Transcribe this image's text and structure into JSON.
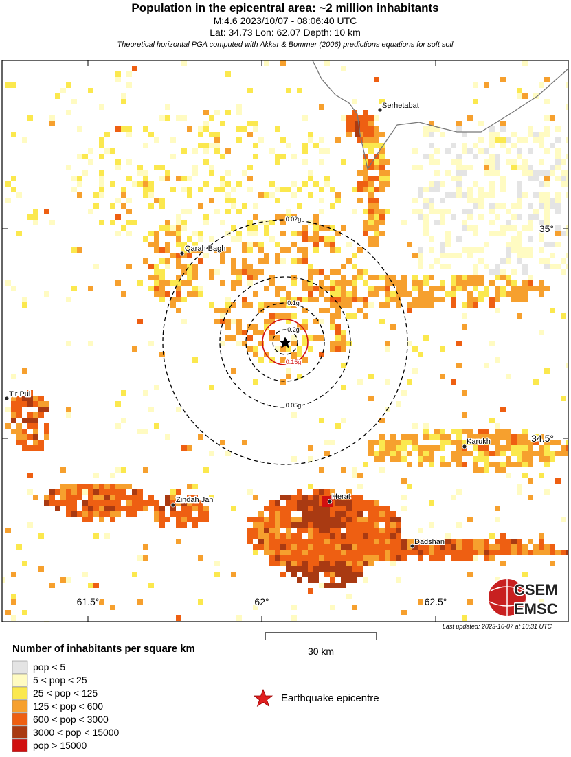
{
  "header": {
    "title": "Population in the epicentral area: ~2 million inhabitants",
    "line1": "M:4.6 2023/10/07 - 08:06:40 UTC",
    "line2": "Lat: 34.73 Lon: 62.07 Depth: 10 km",
    "note": "Theoretical horizontal PGA computed with Akkar & Bommer (2006) predictions equations for soft soil"
  },
  "map": {
    "cities": [
      "Serhetabat",
      "Qarah Bagh",
      "Tir Pul",
      "Karukh",
      "Zindah Jan",
      "Herat",
      "Dadshan"
    ],
    "pga_contours": [
      "0.02g",
      "0.05g",
      "0.1g",
      "0.2g",
      "0.15g"
    ],
    "lon_labels": [
      "61.5°",
      "62°",
      "62.5°"
    ],
    "lat_labels": [
      "35°",
      "34.5°"
    ],
    "scale_bar": "30 km",
    "last_updated": "Last updated: 2023-10-07 at 10:31 UTC",
    "logo": [
      "CSEM",
      "EMSC"
    ]
  },
  "legend": {
    "title": "Number of inhabitants per square km",
    "classes": [
      {
        "label": "pop < 5",
        "color": "#e4e4e4"
      },
      {
        "label": "5 < pop < 25",
        "color": "#fffbc2"
      },
      {
        "label": "25 < pop < 125",
        "color": "#fbe84e"
      },
      {
        "label": "125 < pop < 600",
        "color": "#f6a02e"
      },
      {
        "label": "600 < pop < 3000",
        "color": "#ee5f12"
      },
      {
        "label": "3000 < pop < 15000",
        "color": "#a93a12"
      },
      {
        "label": "pop > 15000",
        "color": "#d01010"
      }
    ],
    "epicentre": "Earthquake epicentre"
  }
}
